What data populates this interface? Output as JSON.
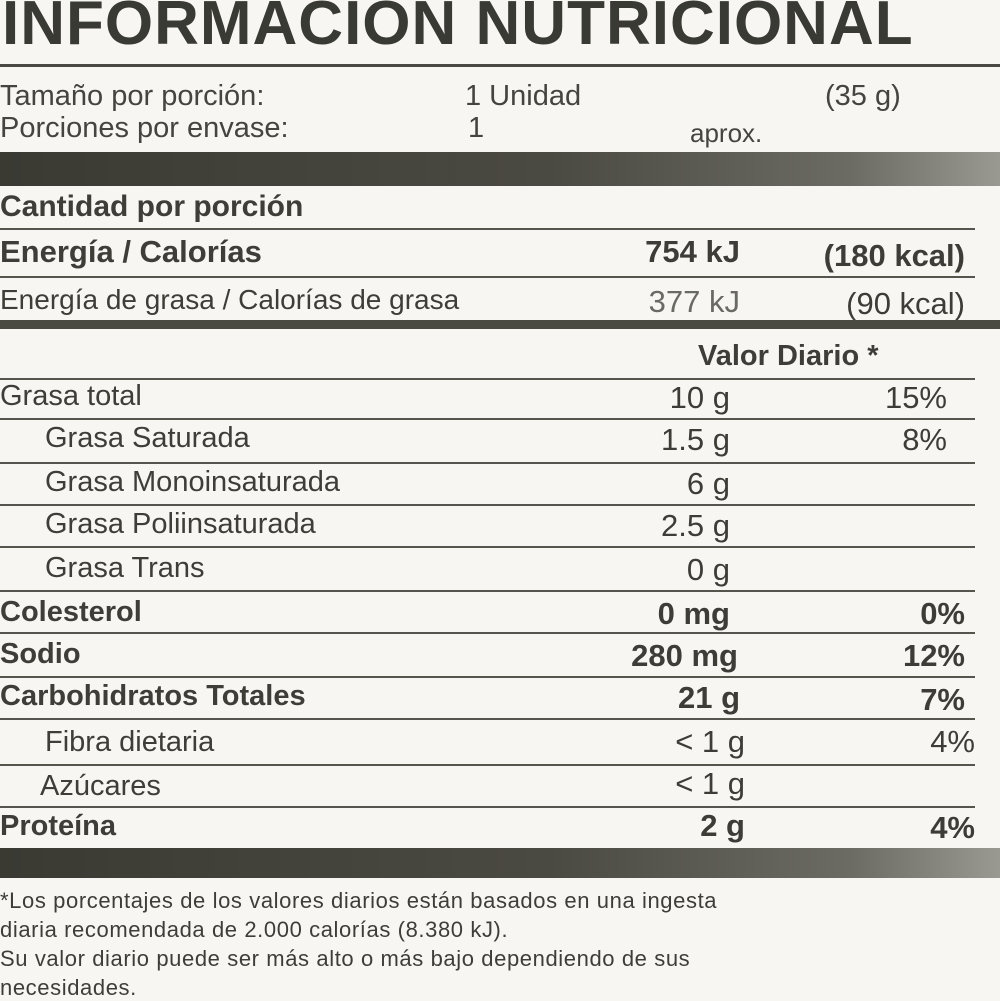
{
  "title": "INFORMACION NUTRICIONAL",
  "serving": {
    "size_label": "Tamaño por porción:",
    "size_value": "1 Unidad",
    "size_weight": "(35 g)",
    "per_container_label": "Porciones por envase:",
    "per_container_value": "1",
    "per_container_note": "aprox."
  },
  "amount_per_serving": "Cantidad por porción",
  "energy": {
    "label": "Energía / Calorías",
    "kj": "754 kJ",
    "kcal": "(180 kcal)"
  },
  "fat_energy": {
    "label": "Energía de grasa / Calorías de grasa",
    "kj": "377 kJ",
    "kcal": "(90 kcal)"
  },
  "daily_value_header": "Valor Diario *",
  "nutrients": [
    {
      "label": "Grasa total",
      "amount": "10 g",
      "dv": "15%",
      "bold": true,
      "sub": false
    },
    {
      "label": "Grasa Saturada",
      "amount": "1.5 g",
      "dv": "8%",
      "bold": false,
      "sub": true
    },
    {
      "label": "Grasa Monoinsaturada",
      "amount": "6 g",
      "dv": "",
      "bold": false,
      "sub": true
    },
    {
      "label": "Grasa Poliinsaturada",
      "amount": "2.5 g",
      "dv": "",
      "bold": false,
      "sub": true
    },
    {
      "label": "Grasa Trans",
      "amount": "0 g",
      "dv": "",
      "bold": false,
      "sub": true
    },
    {
      "label": "Colesterol",
      "amount": "0 mg",
      "dv": "0%",
      "bold": true,
      "sub": false
    },
    {
      "label": "Sodio",
      "amount": "280 mg",
      "dv": "12%",
      "bold": true,
      "sub": false
    },
    {
      "label": "Carbohidratos Totales",
      "amount": "21 g",
      "dv": "7%",
      "bold": true,
      "sub": false
    },
    {
      "label": "Fibra dietaria",
      "amount": "< 1 g",
      "dv": "4%",
      "bold": false,
      "sub": true
    },
    {
      "label": "Azúcares",
      "amount": "< 1 g",
      "dv": "",
      "bold": false,
      "sub": true
    },
    {
      "label": "Proteína",
      "amount": "2 g",
      "dv": "4%",
      "bold": true,
      "sub": false
    }
  ],
  "footnote": {
    "line1": "*Los porcentajes de los valores diarios están basados en una ingesta",
    "line2": "diaria recomendada de 2.000 calorías (8.380 kJ).",
    "line3": "Su valor diario puede ser más alto o más bajo dependiendo de sus",
    "line4": "necesidades."
  }
}
